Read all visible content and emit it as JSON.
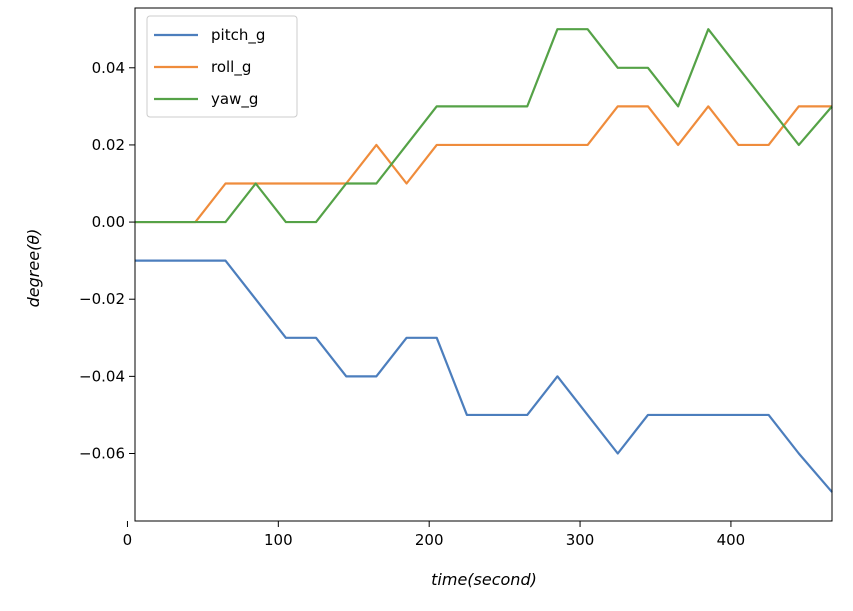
{
  "chart_data": {
    "type": "line",
    "xlabel": "time(second)",
    "ylabel": "degree(θ)",
    "xlim": [
      5,
      467
    ],
    "ylim": [
      -0.0775,
      0.0555
    ],
    "x_ticks": [
      0,
      100,
      200,
      300,
      400
    ],
    "x_tick_labels": [
      "0",
      "100",
      "200",
      "300",
      "400"
    ],
    "y_ticks": [
      -0.06,
      -0.04,
      -0.02,
      0.0,
      0.02,
      0.04
    ],
    "y_tick_labels": [
      "−0.06",
      "−0.04",
      "−0.02",
      "0.00",
      "0.02",
      "0.04"
    ],
    "grid": false,
    "legend_position": "top-left",
    "x": [
      5,
      25,
      45,
      65,
      85,
      105,
      125,
      145,
      165,
      185,
      205,
      225,
      245,
      265,
      285,
      305,
      325,
      345,
      365,
      385,
      405,
      425,
      445,
      467
    ],
    "series": [
      {
        "name": "pitch_g",
        "color": "#4c7ebd",
        "values": [
          -0.01,
          -0.01,
          -0.01,
          -0.01,
          -0.02,
          -0.03,
          -0.03,
          -0.04,
          -0.04,
          -0.03,
          -0.03,
          -0.05,
          -0.05,
          -0.05,
          -0.04,
          -0.05,
          -0.06,
          -0.05,
          -0.05,
          -0.05,
          -0.05,
          -0.05,
          -0.06,
          -0.07
        ]
      },
      {
        "name": "roll_g",
        "color": "#ef8c3c",
        "values": [
          0.0,
          0.0,
          0.0,
          0.01,
          0.01,
          0.01,
          0.01,
          0.01,
          0.02,
          0.01,
          0.02,
          0.02,
          0.02,
          0.02,
          0.02,
          0.02,
          0.03,
          0.03,
          0.02,
          0.03,
          0.02,
          0.02,
          0.03,
          0.03
        ]
      },
      {
        "name": "yaw_g",
        "color": "#55a247",
        "values": [
          0.0,
          0.0,
          0.0,
          0.0,
          0.01,
          0.0,
          0.0,
          0.01,
          0.01,
          0.02,
          0.03,
          0.03,
          0.03,
          0.03,
          0.05,
          0.05,
          0.04,
          0.04,
          0.03,
          0.05,
          0.04,
          0.03,
          0.02,
          0.03
        ]
      }
    ]
  }
}
